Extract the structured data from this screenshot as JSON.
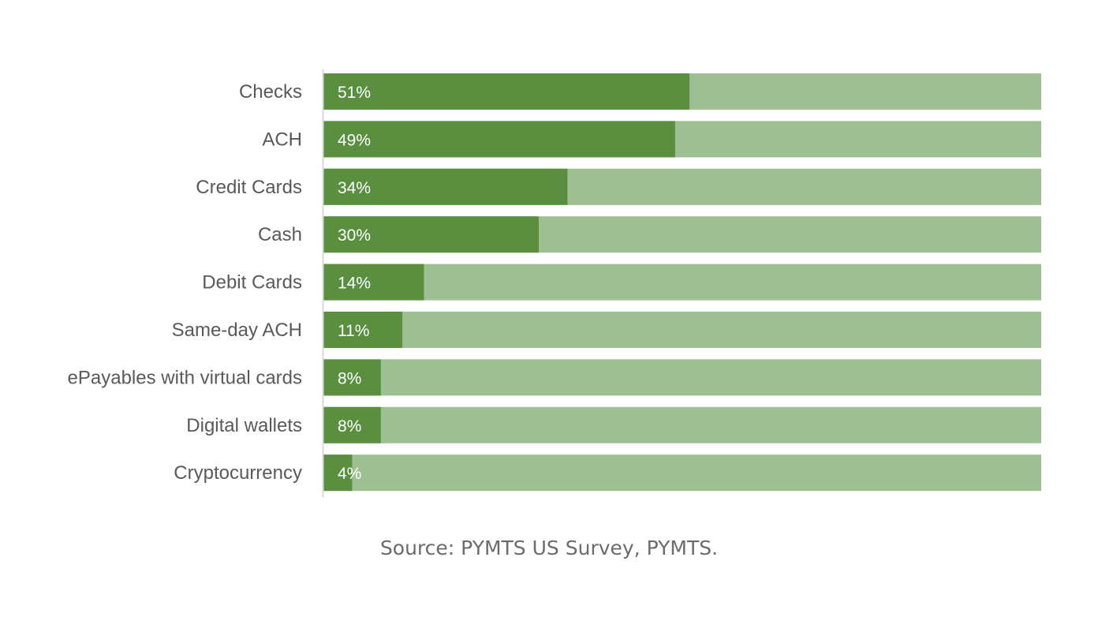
{
  "chart_data": {
    "type": "bar",
    "orientation": "horizontal",
    "stacked_background": true,
    "categories": [
      "Checks",
      "ACH",
      "Credit Cards",
      "Cash",
      "Debit Cards",
      "Same-day ACH",
      "ePayables with virtual cards",
      "Digital wallets",
      "Cryptocurrency"
    ],
    "values": [
      51,
      49,
      34,
      30,
      14,
      11,
      8,
      8,
      4
    ],
    "data_labels": [
      "51%",
      "49%",
      "34%",
      "30%",
      "14%",
      "11%",
      "8%",
      "8%",
      "4%"
    ],
    "xlim": [
      0,
      100
    ],
    "grid": false,
    "legend": "none",
    "colors": {
      "value": "#5a8f40",
      "remainder": "#9dbf91",
      "axis": "#d9d9d9"
    }
  },
  "source": "Source: PYMTS US Survey, PYMTS."
}
